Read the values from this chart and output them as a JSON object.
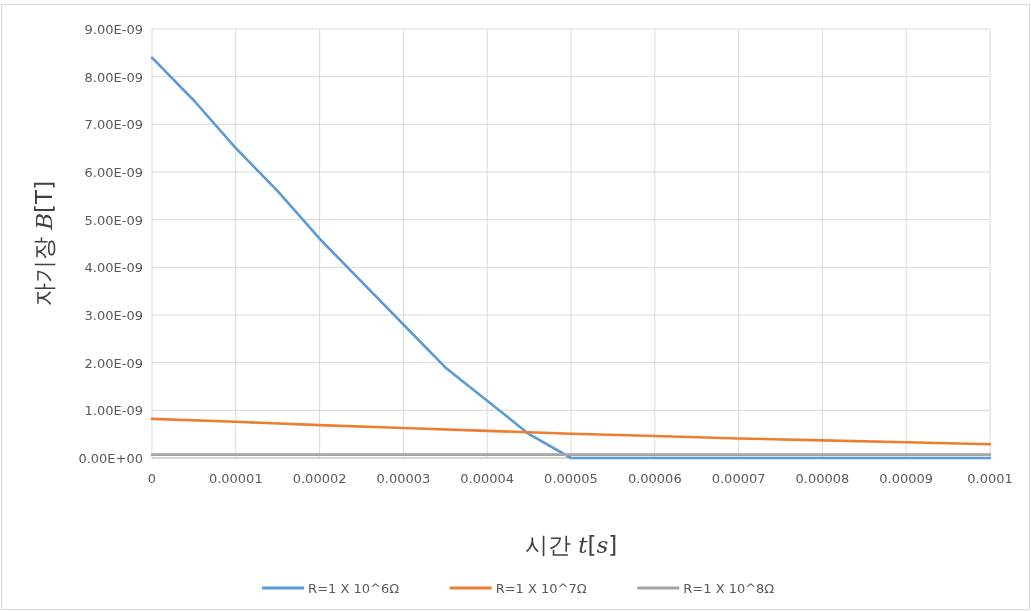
{
  "chart_data": {
    "type": "line",
    "xlabel": "시간 *t*[*s*]",
    "ylabel": "자기장 *B*[T]",
    "xlim": [
      0,
      0.0001
    ],
    "xticks": [
      0,
      {
        "value": 1e-05,
        "label": "0.00001"
      },
      {
        "value": 2e-05,
        "label": "0.00002"
      },
      {
        "value": 3e-05,
        "label": "0.00003"
      },
      {
        "value": 4e-05,
        "label": "0.00004"
      },
      {
        "value": 5e-05,
        "label": "0.00005"
      },
      {
        "value": 6e-05,
        "label": "0.00006"
      },
      {
        "value": 7e-05,
        "label": "0.00007"
      },
      {
        "value": 8e-05,
        "label": "0.00008"
      },
      {
        "value": 9e-05,
        "label": "0.00009"
      },
      0.0001
    ],
    "ylim": [
      0,
      9e-09
    ],
    "yticks": [
      {
        "value": 0,
        "label": "0.00E+00"
      },
      {
        "value": 1e-09,
        "label": "1.00E-09"
      },
      {
        "value": 2e-09,
        "label": "2.00E-09"
      },
      {
        "value": 3e-09,
        "label": "3.00E-09"
      },
      {
        "value": 4e-09,
        "label": "4.00E-09"
      },
      {
        "value": 5e-09,
        "label": "5.00E-09"
      },
      {
        "value": 6e-09,
        "label": "6.00E-09"
      },
      {
        "value": 7e-09,
        "label": "7.00E-09"
      },
      {
        "value": 8e-09,
        "label": "8.00E-09"
      },
      {
        "value": 9e-09,
        "label": "9.00E-09"
      }
    ],
    "grid": true,
    "legend": "bottom",
    "series": [
      {
        "name": "R=1 X 10^6Ω",
        "color": "#5b9bd5",
        "x": [
          0,
          5e-06,
          1e-05,
          1.5e-05,
          2e-05,
          2.5e-05,
          3e-05,
          3.5e-05,
          4e-05,
          4.5e-05,
          5e-05,
          0.0001
        ],
        "values": [
          8.4e-09,
          7.5e-09,
          6.5e-09,
          5.6e-09,
          4.6e-09,
          3.7e-09,
          2.8e-09,
          1.9e-09,
          1.2e-09,
          5e-10,
          0,
          0
        ]
      },
      {
        "name": "R=1 X 10^7Ω",
        "color": "#ed7d31",
        "x": [
          0,
          1e-05,
          2e-05,
          3e-05,
          4e-05,
          5e-05,
          6e-05,
          7e-05,
          8e-05,
          9e-05,
          0.0001
        ],
        "values": [
          8.2e-10,
          7.6e-10,
          6.9e-10,
          6.3e-10,
          5.7e-10,
          5.1e-10,
          4.6e-10,
          4.1e-10,
          3.7e-10,
          3.3e-10,
          2.9e-10
        ]
      },
      {
        "name": "R=1 X 10^8Ω",
        "color": "#a5a5a5",
        "x": [
          0,
          0.0001
        ],
        "values": [
          7e-11,
          7e-11
        ]
      }
    ]
  }
}
